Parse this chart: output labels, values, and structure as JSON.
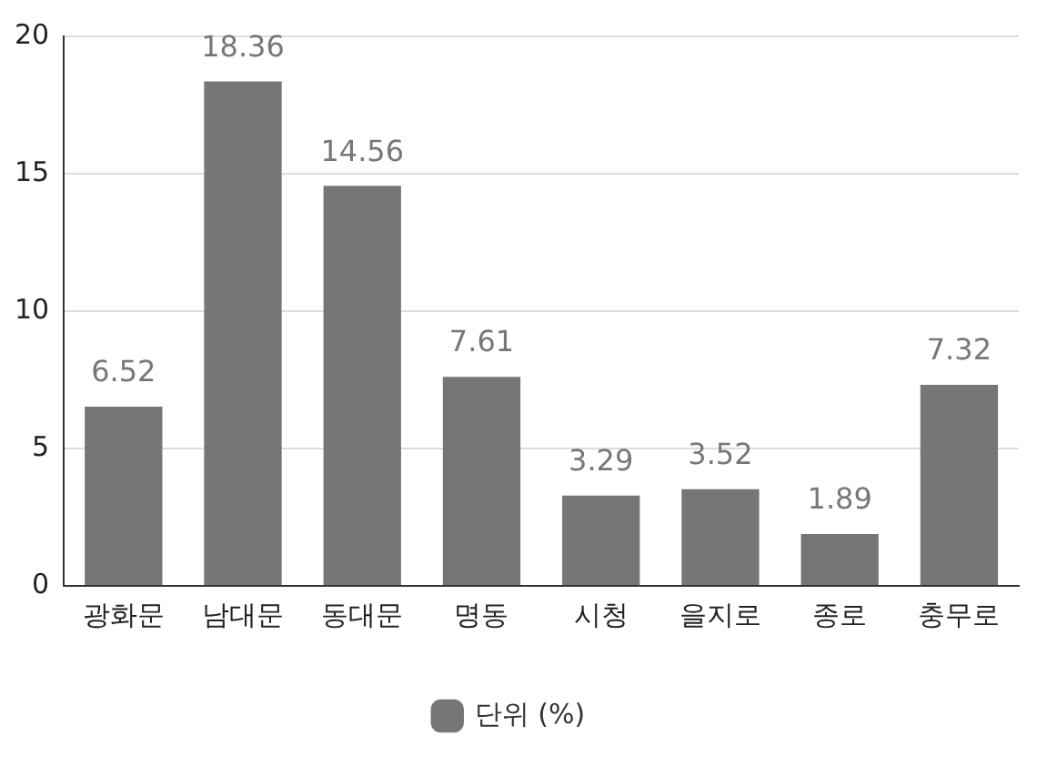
{
  "chart_data": {
    "type": "bar",
    "categories": [
      "광화문",
      "남대문",
      "동대문",
      "명동",
      "시청",
      "을지로",
      "종로",
      "충무로"
    ],
    "series": [
      {
        "name": "단위 (%)",
        "color": "#767676",
        "values": [
          6.52,
          18.36,
          14.56,
          7.61,
          3.29,
          3.52,
          1.89,
          7.32
        ]
      }
    ],
    "ylim": [
      0,
      20
    ],
    "yticks": [
      0,
      5,
      10,
      15,
      20
    ],
    "grid": "y",
    "legend": "bottom",
    "data_labels": true
  }
}
